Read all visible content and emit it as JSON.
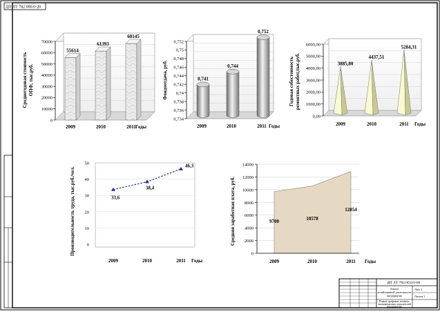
{
  "doc_code_rotated": "ДП ЛТ 782 000.0-20",
  "titleblock": {
    "code": "ДП ЛТ 782.00.0.0-00",
    "org_line1": "Анализ",
    "org_line2": "хозяйственной деятельности",
    "org_line3": "предприятия",
    "note_line1": "Плакат графиков технико-",
    "note_line2": "экономических показателей",
    "note_line3": "предприятия",
    "sheet": "Лист 1",
    "sheets": "Листов 1"
  },
  "chart_data": [
    {
      "id": "fixed-assets",
      "type": "bar",
      "style": "3d-box",
      "categories": [
        "2009",
        "2010",
        "2011"
      ],
      "values": [
        55614,
        61393,
        68145
      ],
      "value_labels": [
        "55614",
        "61393",
        "68145"
      ],
      "ylabel_line1": "Среднегодовая стоимость",
      "ylabel_line2": "ОПФ, тыс.руб.",
      "xlabel": "Годы",
      "ylim": [
        0,
        70000
      ],
      "ticks": [
        0,
        10000,
        20000,
        30000,
        40000,
        50000,
        60000,
        70000
      ],
      "tick_labels": [
        "0",
        "10000",
        "20000",
        "30000",
        "40000",
        "50000",
        "60000",
        "70000"
      ]
    },
    {
      "id": "capital-productivity",
      "type": "bar",
      "style": "3d-cylinder",
      "categories": [
        "2009",
        "2010",
        "2011"
      ],
      "values": [
        0.741,
        0.744,
        0.752
      ],
      "value_labels": [
        "0,741",
        "0,744",
        "0,752"
      ],
      "ylabel": "Фондоотдача, руб.",
      "xlabel": "Годы",
      "ylim": [
        0.734,
        0.752
      ],
      "ticks": [
        0.734,
        0.736,
        0.738,
        0.74,
        0.742,
        0.744,
        0.746,
        0.748,
        0.75,
        0.752
      ],
      "tick_labels": [
        "0,734",
        "0,736",
        "0,738",
        "0,74",
        "0,742",
        "0,744",
        "0,746",
        "0,748",
        "0,75",
        "0,752"
      ]
    },
    {
      "id": "repair-cost",
      "type": "bar",
      "style": "3d-pyramid",
      "categories": [
        "2009",
        "2010",
        "2011"
      ],
      "values": [
        3885.8,
        4437.51,
        5284.31
      ],
      "value_labels": [
        "3885,80",
        "4437,51",
        "5284,31"
      ],
      "ylabel_line1": "Годовая себестоимость",
      "ylabel_line2": "ремонтных работ,тыс.руб.",
      "xlabel": "Годы",
      "ylim": [
        0,
        6000
      ],
      "ticks": [
        0,
        1000,
        2000,
        3000,
        4000,
        5000,
        6000
      ],
      "tick_labels": [
        "0,00",
        "1000,00",
        "2000,00",
        "3000,00",
        "4000,00",
        "5000,00",
        "6000,00"
      ]
    },
    {
      "id": "labor-productivity",
      "type": "line",
      "categories": [
        "2009",
        "2010",
        "2011"
      ],
      "values": [
        33.6,
        38.4,
        46.3
      ],
      "value_labels": [
        "33,6",
        "38,4",
        "46,3"
      ],
      "ylabel": "Производительность труда, тыс.руб./чел.",
      "xlabel": "Годы",
      "ylim": [
        0,
        50
      ],
      "ticks": [
        0,
        10,
        20,
        30,
        40,
        50
      ],
      "tick_labels": [
        "0",
        "10",
        "20",
        "30",
        "40",
        "50"
      ]
    },
    {
      "id": "avg-salary",
      "type": "area",
      "categories": [
        "2009",
        "2010",
        "2011"
      ],
      "values": [
        9700,
        10578,
        12854
      ],
      "value_labels": [
        "9700",
        "10578",
        "12854"
      ],
      "ylabel": "Средняя заработная плата, руб.",
      "xlabel": "Годы",
      "ylim": [
        0,
        14000
      ],
      "ticks": [
        0,
        2000,
        4000,
        6000,
        8000,
        10000,
        12000,
        14000
      ],
      "tick_labels": [
        "0",
        "2000",
        "4000",
        "6000",
        "8000",
        "10000",
        "12000",
        "14000"
      ]
    }
  ],
  "colors": {
    "box_face": "#e6e6e6",
    "cylinder": "#8a8a8a",
    "pyramid_light": "#fafad2",
    "pyramid_dark": "#c8c890",
    "area_fill": "#e5d9c3",
    "line_color": "#1f2f8f"
  }
}
